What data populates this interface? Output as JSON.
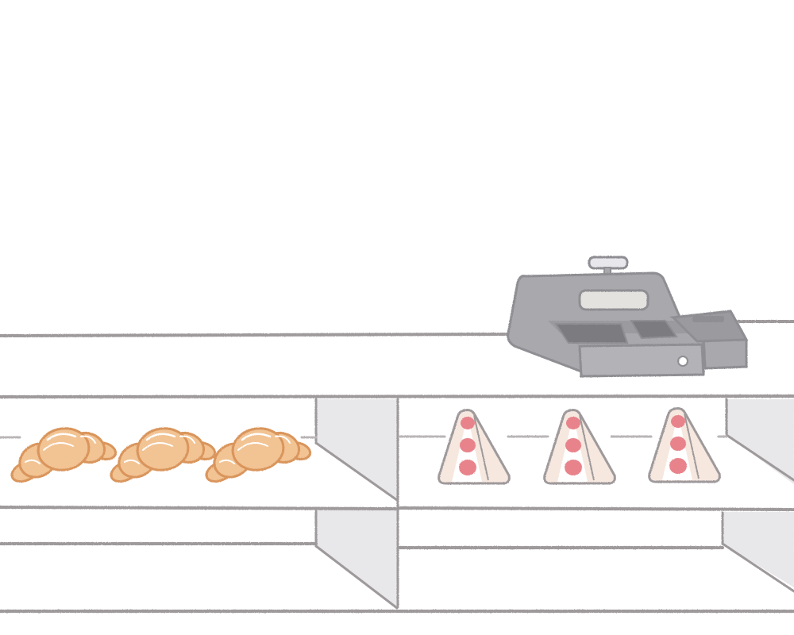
{
  "scene": {
    "subject": "bakery-display-counter",
    "colors": {
      "background": "#ffffff",
      "shelf_line": "#9e999b",
      "panel": "#e8e7e9",
      "croissant": "#f2c393",
      "croissant_outline": "#d9955b",
      "sandwich_bread": "#f6e8df",
      "sandwich_cream": "#ffffff",
      "strawberry": "#e8838b",
      "register_body": "#a9a8ac",
      "register_dark": "#8f8e93"
    },
    "items": {
      "croissants": 3,
      "sandwiches": 3,
      "cash_register": 1,
      "card_reader": 1
    }
  }
}
